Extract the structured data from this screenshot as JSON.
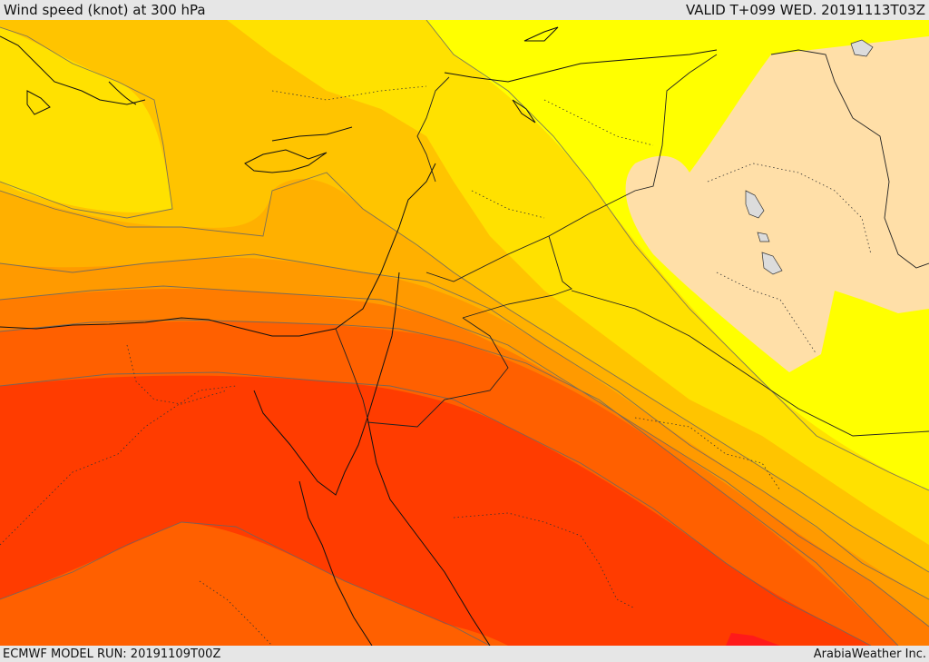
{
  "header": {
    "title": "Wind speed (knot) at 300 hPa",
    "valid": "VALID T+099 WED. 20191113T03Z"
  },
  "footer": {
    "model_run": "ECMWF MODEL RUN: 20191109T00Z",
    "credit": "ArabiaWeather Inc."
  },
  "colors": {
    "band_weakest": "#ffdfa8",
    "band_1": "#ffff00",
    "band_2": "#ffe100",
    "band_3": "#ffc400",
    "band_4": "#ffb000",
    "band_5": "#ff9a00",
    "band_6": "#ff7c00",
    "band_7": "#ff6000",
    "band_strongest": "#ff3c00",
    "jet_core": "#ff1a1a",
    "lake": "#dcdcdc"
  }
}
